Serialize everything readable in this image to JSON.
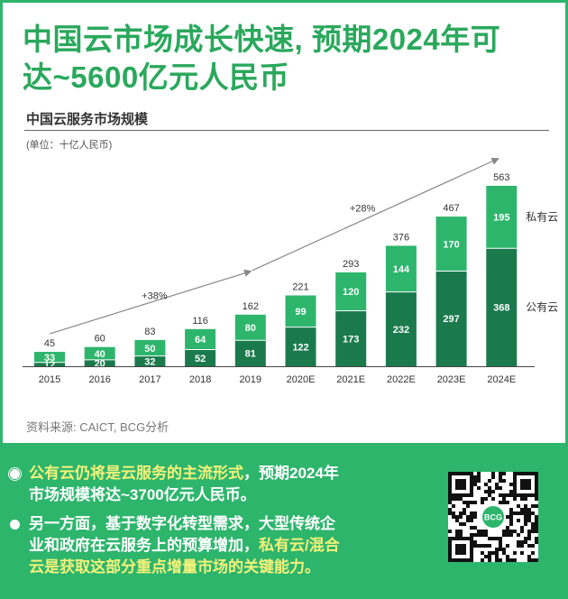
{
  "headline": {
    "line1": "中国云市场成长快速, 预期2024年可",
    "line2": "达~5600亿元人民币"
  },
  "chart_title": "中国云服务市场规模",
  "unit": "(单位：十亿人民币)",
  "source": "资料来源: CAICT, BCG分析",
  "colors": {
    "accent": "#2db56c",
    "private_cloud": "#2db56c",
    "public_cloud": "#1a7a4c",
    "highlight_text": "#f4f27a"
  },
  "chart_data": {
    "type": "bar",
    "stacked": true,
    "categories": [
      "2015",
      "2016",
      "2017",
      "2018",
      "2019",
      "2020E",
      "2021E",
      "2022E",
      "2023E",
      "2024E"
    ],
    "series": [
      {
        "name": "公有云",
        "values": [
          12,
          20,
          32,
          52,
          81,
          122,
          173,
          232,
          297,
          368
        ]
      },
      {
        "name": "私有云",
        "values": [
          33,
          40,
          50,
          64,
          80,
          99,
          120,
          144,
          170,
          195
        ]
      }
    ],
    "totals": [
      45,
      60,
      83,
      116,
      162,
      221,
      293,
      376,
      467,
      563
    ],
    "ylim": [
      0,
      563
    ],
    "annotations": [
      {
        "text": "+38%",
        "from": "2015",
        "to": "2019"
      },
      {
        "text": "+28%",
        "from": "2019",
        "to": "2024E"
      }
    ],
    "legend": "right, labels beside last bar"
  },
  "footer": {
    "bullet1_highlight": "公有云仍将是云服务的主流形式",
    "bullet1_rest_a": "，预期2024年",
    "bullet1_rest_b": "市场规模将达~3700亿元人民币。",
    "bullet2_a": "另一方面，基于数字化转型需求，大型传统企",
    "bullet2_b": "业和政府在云服务上的预算增加，",
    "bullet2_highlight_a": "私有云/混合",
    "bullet2_highlight_b": "云是获取这部分重点增量市场的关键能力。",
    "qr_logo": "BCG",
    "qr_icon": "qr-code-icon"
  }
}
